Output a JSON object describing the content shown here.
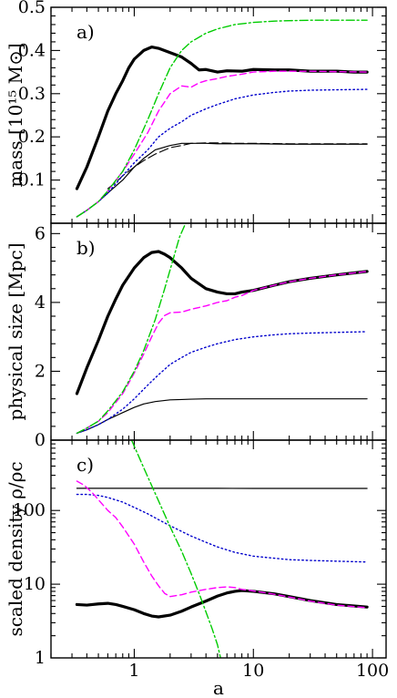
{
  "chart_data": [
    {
      "id": "panel_a",
      "type": "line",
      "panel_label": "a)",
      "ylabel": "mass [10¹⁵ M⊙]",
      "xscale": "log",
      "xlim": [
        0.2,
        130
      ],
      "ylim": [
        0,
        0.5
      ],
      "y_ticks": [
        0.1,
        0.2,
        0.3,
        0.4,
        0.5
      ],
      "y_tick_labels": [
        "0.1",
        "0.2",
        "0.3",
        "0.4",
        "0.5"
      ],
      "series": [
        {
          "style": "thick-solid",
          "color": "#000000",
          "x": [
            0.33,
            0.4,
            0.5,
            0.6,
            0.7,
            0.8,
            0.9,
            1.0,
            1.2,
            1.4,
            1.6,
            2.0,
            2.5,
            3.0,
            3.5,
            4,
            5,
            6,
            8,
            10,
            15,
            20,
            30,
            50,
            70,
            90
          ],
          "y": [
            0.08,
            0.13,
            0.2,
            0.26,
            0.3,
            0.33,
            0.36,
            0.38,
            0.4,
            0.408,
            0.405,
            0.395,
            0.385,
            0.37,
            0.355,
            0.356,
            0.35,
            0.353,
            0.352,
            0.356,
            0.355,
            0.355,
            0.352,
            0.352,
            0.35,
            0.35
          ]
        },
        {
          "style": "thin-solid",
          "color": "#000000",
          "x": [
            0.33,
            0.4,
            0.5,
            0.6,
            0.8,
            1.0,
            1.2,
            1.5,
            2,
            2.5,
            3,
            4,
            5,
            7,
            10,
            20,
            50,
            90
          ],
          "y": [
            0.015,
            0.03,
            0.05,
            0.07,
            0.1,
            0.13,
            0.15,
            0.17,
            0.18,
            0.185,
            0.185,
            0.185,
            0.184,
            0.184,
            0.184,
            0.183,
            0.183,
            0.183
          ]
        },
        {
          "style": "thin-longdash",
          "color": "#000000",
          "x": [
            0.6,
            0.7,
            0.8,
            1.0,
            1.2,
            1.5,
            2,
            2.5,
            3,
            4,
            5,
            7,
            10,
            20,
            50,
            90
          ],
          "y": [
            0.08,
            0.095,
            0.11,
            0.13,
            0.145,
            0.16,
            0.175,
            0.18,
            0.185,
            0.186,
            0.186,
            0.185,
            0.185,
            0.184,
            0.184,
            0.184
          ]
        },
        {
          "style": "dotted",
          "color": "#0000cc",
          "x": [
            0.33,
            0.4,
            0.5,
            0.6,
            0.8,
            1.0,
            1.3,
            1.6,
            2,
            2.5,
            3,
            4,
            5,
            7,
            10,
            15,
            20,
            30,
            50,
            90
          ],
          "y": [
            0.015,
            0.03,
            0.05,
            0.07,
            0.11,
            0.14,
            0.17,
            0.2,
            0.22,
            0.235,
            0.25,
            0.265,
            0.275,
            0.288,
            0.297,
            0.303,
            0.306,
            0.308,
            0.309,
            0.31
          ]
        },
        {
          "style": "dashed",
          "color": "#ff00ff",
          "x": [
            0.33,
            0.4,
            0.5,
            0.6,
            0.8,
            1.0,
            1.3,
            1.6,
            2,
            2.5,
            3,
            3.5,
            4,
            5,
            6,
            8,
            10,
            15,
            20,
            30,
            50,
            90
          ],
          "y": [
            0.015,
            0.03,
            0.05,
            0.075,
            0.12,
            0.16,
            0.21,
            0.26,
            0.3,
            0.318,
            0.315,
            0.325,
            0.33,
            0.335,
            0.34,
            0.345,
            0.35,
            0.352,
            0.352,
            0.352,
            0.351,
            0.35
          ]
        },
        {
          "style": "dashdot",
          "color": "#00cc00",
          "x": [
            0.33,
            0.4,
            0.5,
            0.6,
            0.8,
            1.0,
            1.3,
            1.6,
            2,
            2.5,
            3,
            4,
            5,
            7,
            10,
            15,
            20,
            30,
            50,
            90
          ],
          "y": [
            0.015,
            0.03,
            0.05,
            0.075,
            0.12,
            0.17,
            0.24,
            0.3,
            0.36,
            0.4,
            0.42,
            0.44,
            0.45,
            0.46,
            0.465,
            0.468,
            0.469,
            0.47,
            0.47,
            0.47
          ]
        }
      ]
    },
    {
      "id": "panel_b",
      "type": "line",
      "panel_label": "b)",
      "ylabel": "physical size [Mpc]",
      "xscale": "log",
      "xlim": [
        0.2,
        130
      ],
      "ylim": [
        0,
        6.3
      ],
      "y_ticks": [
        0,
        2,
        4,
        6
      ],
      "y_tick_labels": [
        "0",
        "2",
        "4",
        "6"
      ],
      "series": [
        {
          "style": "thick-solid",
          "color": "#000000",
          "x": [
            0.33,
            0.4,
            0.5,
            0.6,
            0.7,
            0.8,
            1.0,
            1.2,
            1.4,
            1.6,
            1.8,
            2.0,
            2.5,
            3,
            4,
            5,
            6,
            7,
            8,
            10,
            15,
            20,
            30,
            50,
            90
          ],
          "y": [
            1.35,
            2.1,
            2.9,
            3.6,
            4.1,
            4.5,
            5.0,
            5.3,
            5.45,
            5.48,
            5.4,
            5.3,
            5.0,
            4.7,
            4.4,
            4.3,
            4.25,
            4.25,
            4.3,
            4.35,
            4.5,
            4.6,
            4.7,
            4.8,
            4.9
          ]
        },
        {
          "style": "thin-solid",
          "color": "#000000",
          "x": [
            0.33,
            0.4,
            0.5,
            0.6,
            0.8,
            1.0,
            1.2,
            1.5,
            2,
            2.5,
            3,
            4,
            5,
            7,
            10,
            20,
            50,
            90
          ],
          "y": [
            0.2,
            0.3,
            0.45,
            0.6,
            0.8,
            0.95,
            1.05,
            1.12,
            1.17,
            1.18,
            1.19,
            1.2,
            1.2,
            1.2,
            1.2,
            1.2,
            1.2,
            1.2
          ]
        },
        {
          "style": "dotted",
          "color": "#0000cc",
          "x": [
            0.33,
            0.4,
            0.5,
            0.6,
            0.8,
            1.0,
            1.3,
            1.6,
            2,
            2.5,
            3,
            4,
            5,
            7,
            10,
            15,
            20,
            30,
            50,
            90
          ],
          "y": [
            0.2,
            0.3,
            0.45,
            0.6,
            0.9,
            1.2,
            1.6,
            1.9,
            2.2,
            2.4,
            2.55,
            2.7,
            2.8,
            2.92,
            3.0,
            3.06,
            3.09,
            3.11,
            3.13,
            3.15
          ]
        },
        {
          "style": "dashed",
          "color": "#ff00ff",
          "x": [
            0.33,
            0.4,
            0.5,
            0.6,
            0.8,
            1.0,
            1.2,
            1.4,
            1.6,
            1.8,
            2,
            2.5,
            3,
            4,
            5,
            6,
            7,
            8,
            10,
            15,
            20,
            30,
            50,
            90
          ],
          "y": [
            0.2,
            0.35,
            0.55,
            0.8,
            1.35,
            1.95,
            2.5,
            3.0,
            3.4,
            3.62,
            3.7,
            3.72,
            3.8,
            3.9,
            4.0,
            4.05,
            4.15,
            4.2,
            4.35,
            4.5,
            4.6,
            4.7,
            4.8,
            4.9
          ]
        },
        {
          "style": "dashdot",
          "color": "#00cc00",
          "x": [
            0.33,
            0.4,
            0.5,
            0.6,
            0.8,
            1.0,
            1.2,
            1.5,
            1.8,
            2.1,
            2.4,
            2.7
          ],
          "y": [
            0.2,
            0.35,
            0.55,
            0.85,
            1.4,
            2.0,
            2.6,
            3.5,
            4.4,
            5.2,
            5.9,
            6.3
          ]
        }
      ]
    },
    {
      "id": "panel_c",
      "type": "line",
      "panel_label": "c)",
      "ylabel": "scaled density ρ/ρc",
      "xlabel": "a",
      "xscale": "log",
      "yscale": "log",
      "xlim": [
        0.2,
        130
      ],
      "ylim": [
        1,
        900
      ],
      "y_ticks": [
        1,
        10,
        100
      ],
      "y_tick_labels": [
        "1",
        "10",
        "100"
      ],
      "x_ticks": [
        1,
        10,
        100
      ],
      "x_tick_labels": [
        "1",
        "10",
        "100"
      ],
      "series": [
        {
          "style": "thick-solid",
          "color": "#000000",
          "x": [
            0.33,
            0.4,
            0.5,
            0.6,
            0.7,
            0.8,
            1.0,
            1.2,
            1.4,
            1.6,
            2,
            2.5,
            3,
            4,
            5,
            6,
            7,
            8,
            10,
            15,
            20,
            30,
            50,
            90
          ],
          "y": [
            5.3,
            5.2,
            5.4,
            5.5,
            5.3,
            5.0,
            4.5,
            4.0,
            3.7,
            3.6,
            3.8,
            4.3,
            4.9,
            5.9,
            6.9,
            7.6,
            8.0,
            8.2,
            8.0,
            7.4,
            6.8,
            6.0,
            5.3,
            4.9
          ]
        },
        {
          "style": "thin-solid",
          "color": "#000000",
          "x": [
            0.33,
            0.5,
            1,
            2,
            5,
            10,
            20,
            50,
            90
          ],
          "y": [
            200,
            200,
            200,
            200,
            200,
            199,
            199,
            199,
            199
          ]
        },
        {
          "style": "dotted",
          "color": "#0000cc",
          "x": [
            0.33,
            0.4,
            0.5,
            0.6,
            0.8,
            1.0,
            1.3,
            1.6,
            2,
            2.5,
            3,
            4,
            5,
            7,
            10,
            15,
            20,
            30,
            50,
            90
          ],
          "y": [
            165,
            165,
            160,
            150,
            130,
            110,
            90,
            75,
            62,
            52,
            45,
            37,
            32,
            27,
            24,
            22.5,
            21.5,
            21,
            20.5,
            20
          ]
        },
        {
          "style": "dashed",
          "color": "#ff00ff",
          "x": [
            0.33,
            0.38,
            0.45,
            0.5,
            0.6,
            0.7,
            0.8,
            0.9,
            1.0,
            1.2,
            1.4,
            1.6,
            1.8,
            2,
            2.5,
            3,
            4,
            5,
            6,
            7,
            8,
            10,
            15,
            20,
            30,
            50,
            90
          ],
          "y": [
            250,
            220,
            170,
            140,
            100,
            80,
            60,
            45,
            35,
            20,
            13,
            9.5,
            7.5,
            6.8,
            7.2,
            7.8,
            8.5,
            9.0,
            9.2,
            9.0,
            8.5,
            8.1,
            7.3,
            6.7,
            5.9,
            5.2,
            4.8
          ]
        },
        {
          "style": "dashdot",
          "color": "#00cc00",
          "x": [
            0.95,
            1.2,
            1.5,
            2,
            2.5,
            3,
            3.5,
            4,
            4.5,
            5,
            5.3
          ],
          "y": [
            900,
            380,
            170,
            60,
            28,
            14,
            7.5,
            4.2,
            2.5,
            1.5,
            1.0
          ]
        }
      ]
    }
  ]
}
